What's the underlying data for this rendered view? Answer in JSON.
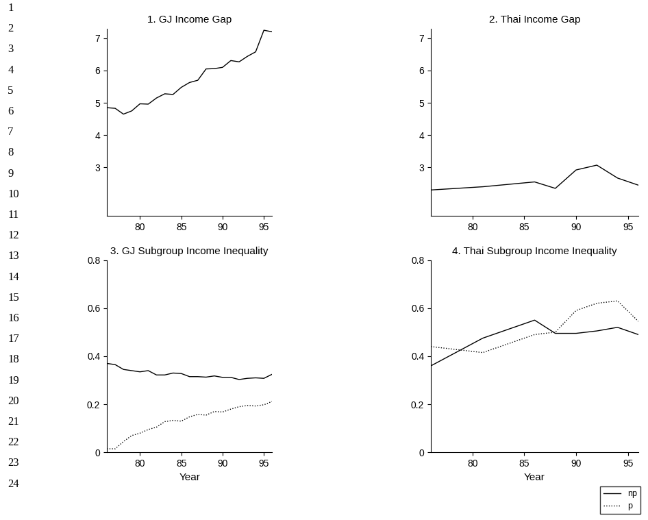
{
  "chart_data": [
    {
      "type": "line",
      "title": "1. GJ Income Gap",
      "x": [
        76,
        77,
        78,
        79,
        80,
        81,
        82,
        83,
        84,
        85,
        86,
        87,
        88,
        89,
        90,
        91,
        92,
        93,
        94,
        95,
        96
      ],
      "values": [
        4.85,
        4.83,
        4.65,
        4.75,
        4.97,
        4.96,
        5.15,
        5.28,
        5.26,
        5.48,
        5.63,
        5.7,
        6.05,
        6.06,
        6.1,
        6.31,
        6.27,
        6.44,
        6.58,
        7.25,
        7.2
      ],
      "color": "#000000",
      "line_style": "solid",
      "xlim": [
        76,
        96
      ],
      "xticks": [
        80,
        85,
        90,
        95
      ],
      "ylim": [
        1.5,
        7.3
      ],
      "yticks": [
        3,
        4,
        5,
        6,
        7
      ]
    },
    {
      "type": "line",
      "title": "2. Thai Income Gap",
      "x": [
        76,
        81,
        86,
        88,
        90,
        92,
        94,
        96
      ],
      "values": [
        2.3,
        2.4,
        2.55,
        2.35,
        2.92,
        3.07,
        2.67,
        2.45
      ],
      "color": "#000000",
      "line_style": "solid",
      "xlim": [
        76,
        96
      ],
      "xticks": [
        80,
        85,
        90,
        95
      ],
      "ylim": [
        1.5,
        7.3
      ],
      "yticks": [
        3,
        4,
        5,
        6,
        7
      ]
    },
    {
      "type": "line",
      "title": "3. GJ Subgroup Income Inequality",
      "x_label": "Year",
      "x": [
        76,
        77,
        78,
        79,
        80,
        81,
        82,
        83,
        84,
        85,
        86,
        87,
        88,
        89,
        90,
        91,
        92,
        93,
        94,
        95,
        96
      ],
      "series": [
        {
          "name": "np",
          "color": "#000000",
          "line_style": "solid",
          "values": [
            0.37,
            0.365,
            0.345,
            0.34,
            0.335,
            0.34,
            0.322,
            0.322,
            0.33,
            0.328,
            0.315,
            0.315,
            0.313,
            0.318,
            0.312,
            0.312,
            0.303,
            0.308,
            0.31,
            0.308,
            0.325
          ]
        },
        {
          "name": "p",
          "color": "#000000",
          "line_style": "dotted",
          "values": [
            0.015,
            0.015,
            0.045,
            0.07,
            0.08,
            0.095,
            0.105,
            0.128,
            0.133,
            0.13,
            0.148,
            0.158,
            0.155,
            0.17,
            0.168,
            0.18,
            0.19,
            0.195,
            0.193,
            0.198,
            0.212
          ]
        }
      ],
      "xlim": [
        76,
        96
      ],
      "xticks": [
        80,
        85,
        90,
        95
      ],
      "ylim": [
        0,
        0.8
      ],
      "yticks": [
        0,
        0.2,
        0.4,
        0.6,
        0.8
      ]
    },
    {
      "type": "line",
      "title": "4. Thai Subgroup Income Inequality",
      "x_label": "Year",
      "x": [
        76,
        81,
        86,
        88,
        90,
        92,
        94,
        96
      ],
      "series": [
        {
          "name": "np",
          "color": "#000000",
          "line_style": "solid",
          "values": [
            0.36,
            0.475,
            0.55,
            0.495,
            0.495,
            0.505,
            0.52,
            0.49
          ]
        },
        {
          "name": "p",
          "color": "#000000",
          "line_style": "dotted",
          "values": [
            0.44,
            0.415,
            0.49,
            0.5,
            0.59,
            0.62,
            0.63,
            0.545
          ]
        }
      ],
      "xlim": [
        76,
        96
      ],
      "xticks": [
        80,
        85,
        90,
        95
      ],
      "ylim": [
        0,
        0.8
      ],
      "yticks": [
        0,
        0.2,
        0.4,
        0.6,
        0.8
      ],
      "legend": "lower right"
    }
  ],
  "line_numbers": [
    1,
    2,
    3,
    4,
    5,
    6,
    7,
    8,
    9,
    10,
    11,
    12,
    13,
    14,
    15,
    16,
    17,
    18,
    19,
    20,
    21,
    22,
    23,
    24
  ]
}
